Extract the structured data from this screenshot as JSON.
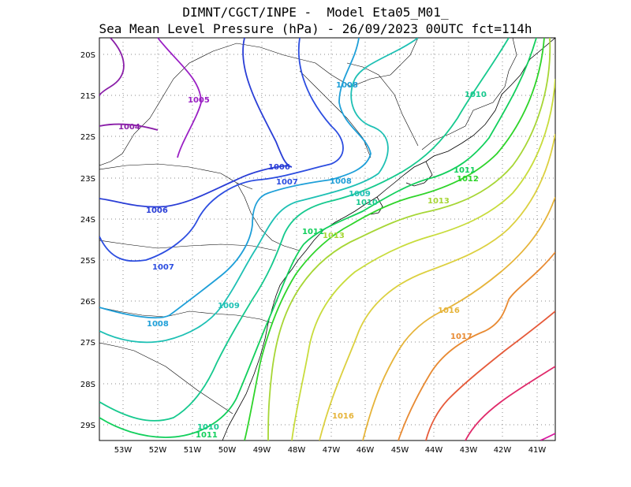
{
  "header": {
    "line1": "DIMNT/CGCT/INPE -  Model Eta05_M01_",
    "line2": "Sea Mean Level Pressure (hPa) - 26/09/2023 00UTC fct=114h"
  },
  "axes": {
    "lon_labels": [
      "53W",
      "52W",
      "51W",
      "50W",
      "49W",
      "48W",
      "47W",
      "46W",
      "45W",
      "44W",
      "43W",
      "42W",
      "41W"
    ],
    "lat_labels": [
      "20S",
      "21S",
      "22S",
      "23S",
      "24S",
      "25S",
      "26S",
      "27S",
      "28S",
      "29S"
    ]
  },
  "colors": {
    "1004": "#8a1ea8",
    "1005": "#9a1fc4",
    "1006": "#2a3ed6",
    "1007": "#2c4de0",
    "1008": "#1e9fd8",
    "1009": "#1ec0b4",
    "1010": "#16c98e",
    "1011": "#12cf5c",
    "1012": "#2ed42a",
    "1013": "#a6d635",
    "1014": "#c8dc3c",
    "1015": "#dcd040",
    "1016": "#e6b43a",
    "1017": "#e88a32",
    "1018": "#e65a3a",
    "1019": "#e02a6a",
    "1020": "#d81aa0"
  },
  "contour_labels": [
    {
      "text": "1004",
      "key": "1004"
    },
    {
      "text": "1005",
      "key": "1005"
    },
    {
      "text": "1006",
      "key": "1006"
    },
    {
      "text": "1006",
      "key": "1006"
    },
    {
      "text": "1007",
      "key": "1007"
    },
    {
      "text": "1007",
      "key": "1007"
    },
    {
      "text": "1008",
      "key": "1008"
    },
    {
      "text": "1008",
      "key": "1008"
    },
    {
      "text": "1008",
      "key": "1008"
    },
    {
      "text": "1009",
      "key": "1009"
    },
    {
      "text": "1009",
      "key": "1009"
    },
    {
      "text": "1010",
      "key": "1010"
    },
    {
      "text": "1010",
      "key": "1010"
    },
    {
      "text": "1010",
      "key": "1010"
    },
    {
      "text": "1011",
      "key": "1011"
    },
    {
      "text": "1011",
      "key": "1011"
    },
    {
      "text": "1011",
      "key": "1011"
    },
    {
      "text": "1012",
      "key": "1012"
    },
    {
      "text": "1013",
      "key": "1013"
    },
    {
      "text": "1013",
      "key": "1013"
    },
    {
      "text": "1016",
      "key": "1016"
    },
    {
      "text": "1016",
      "key": "1016"
    },
    {
      "text": "1017",
      "key": "1017"
    }
  ]
}
